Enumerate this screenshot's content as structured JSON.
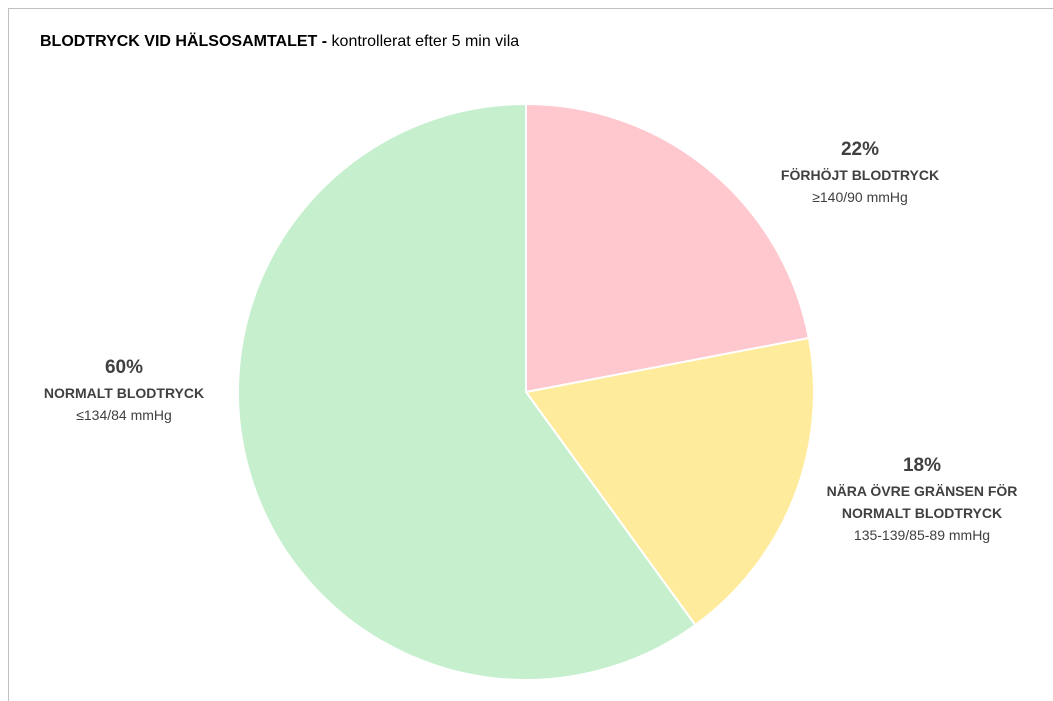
{
  "chart_data": {
    "type": "pie",
    "title": "BLODTRYCK VID HÄLSOSAMTALET -",
    "subtitle": "kontrollerat efter 5 min vila",
    "categories": [
      "FÖRHÖJT BLODTRYCK",
      "NÄRA ÖVRE GRÄNSEN FÖR NORMALT BLODTRYCK",
      "NORMALT BLODTRYCK"
    ],
    "descriptions": [
      "≥140/90 mmHg",
      "135-139/85-89 mmHg",
      "≤134/84 mmHg"
    ],
    "values": [
      22,
      18,
      60
    ],
    "value_labels": [
      "22%",
      "18%",
      "60%"
    ],
    "colors": [
      "#ffc7ce",
      "#ffeb9c",
      "#c6efce"
    ]
  }
}
